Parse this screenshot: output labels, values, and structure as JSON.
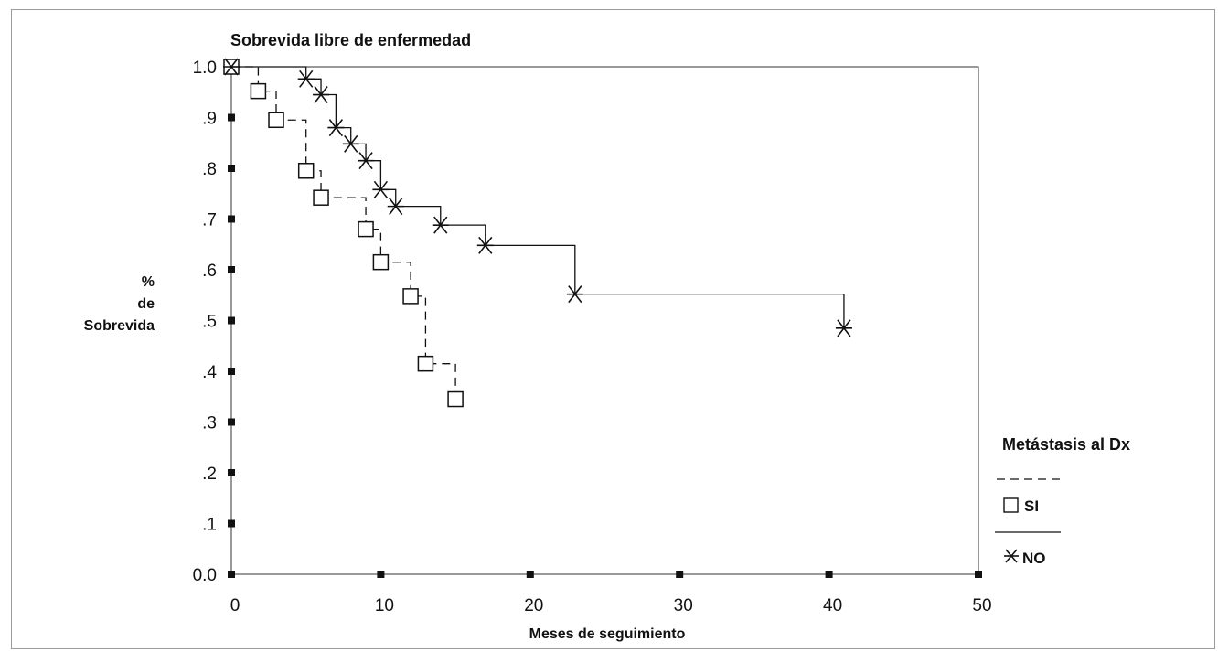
{
  "chart_data": {
    "type": "line",
    "title": "Sobrevida libre de enfermedad",
    "xlabel": "Meses de seguimiento",
    "ylabel_lines": [
      "%",
      "de",
      "Sobrevida"
    ],
    "xlim": [
      0,
      50
    ],
    "ylim": [
      0.0,
      1.0
    ],
    "x_tick_labels": [
      "0",
      "10",
      "20",
      "30",
      "40",
      "50"
    ],
    "y_tick_labels": [
      "0.0",
      ".1",
      ".2",
      ".3",
      ".4",
      ".5",
      ".6",
      ".7",
      ".8",
      ".9",
      "1.0"
    ],
    "step": true,
    "grid": false,
    "legend": {
      "title": "Metástasis al Dx",
      "placement": "right"
    },
    "series": [
      {
        "name": "SI",
        "line_style": "dashed",
        "marker": "square",
        "points": [
          {
            "x": 0,
            "y": 1.0
          },
          {
            "x": 1.8,
            "y": 0.952
          },
          {
            "x": 3.0,
            "y": 0.895
          },
          {
            "x": 5.0,
            "y": 0.795
          },
          {
            "x": 6.0,
            "y": 0.742
          },
          {
            "x": 9.0,
            "y": 0.68
          },
          {
            "x": 10.0,
            "y": 0.615
          },
          {
            "x": 12.0,
            "y": 0.548
          },
          {
            "x": 13.0,
            "y": 0.415
          },
          {
            "x": 15.0,
            "y": 0.345
          }
        ]
      },
      {
        "name": "NO",
        "line_style": "solid",
        "marker": "asterisk",
        "points": [
          {
            "x": 0,
            "y": 1.0
          },
          {
            "x": 5.0,
            "y": 0.976
          },
          {
            "x": 6.0,
            "y": 0.945
          },
          {
            "x": 7.0,
            "y": 0.88
          },
          {
            "x": 8.0,
            "y": 0.848
          },
          {
            "x": 9.0,
            "y": 0.815
          },
          {
            "x": 10.0,
            "y": 0.758
          },
          {
            "x": 11.0,
            "y": 0.725
          },
          {
            "x": 14.0,
            "y": 0.688
          },
          {
            "x": 17.0,
            "y": 0.648
          },
          {
            "x": 23.0,
            "y": 0.552
          },
          {
            "x": 41.0,
            "y": 0.485
          }
        ]
      }
    ]
  }
}
